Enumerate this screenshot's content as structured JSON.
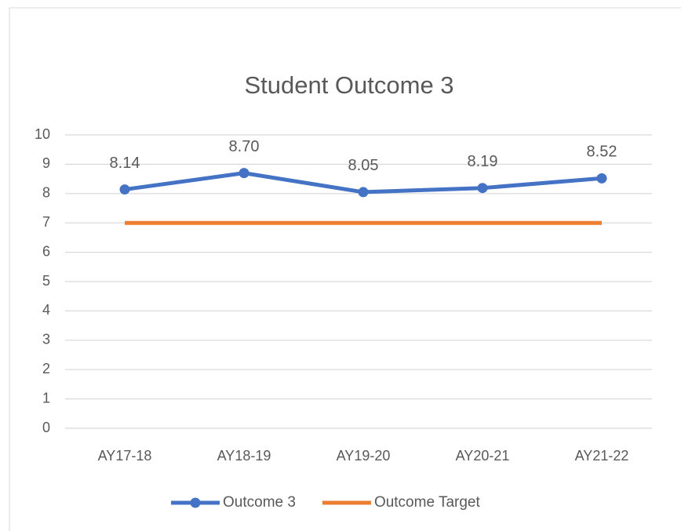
{
  "chart_data": {
    "type": "line",
    "title": "Student Outcome 3",
    "categories": [
      "AY17-18",
      "AY18-19",
      "AY19-20",
      "AY20-21",
      "AY21-22"
    ],
    "series": [
      {
        "name": "Outcome 3",
        "color": "#4472c4",
        "values": [
          8.14,
          8.7,
          8.05,
          8.19,
          8.52
        ],
        "value_labels": [
          "8.14",
          "8.70",
          "8.05",
          "8.19",
          "8.52"
        ],
        "markers": true
      },
      {
        "name": "Outcome Target",
        "color": "#ed7d31",
        "values": [
          7,
          7,
          7,
          7,
          7
        ],
        "markers": false
      }
    ],
    "ylim": [
      0,
      10
    ],
    "yticks": [
      0,
      1,
      2,
      3,
      4,
      5,
      6,
      7,
      8,
      9,
      10
    ],
    "grid": true,
    "legend": "bottom"
  }
}
